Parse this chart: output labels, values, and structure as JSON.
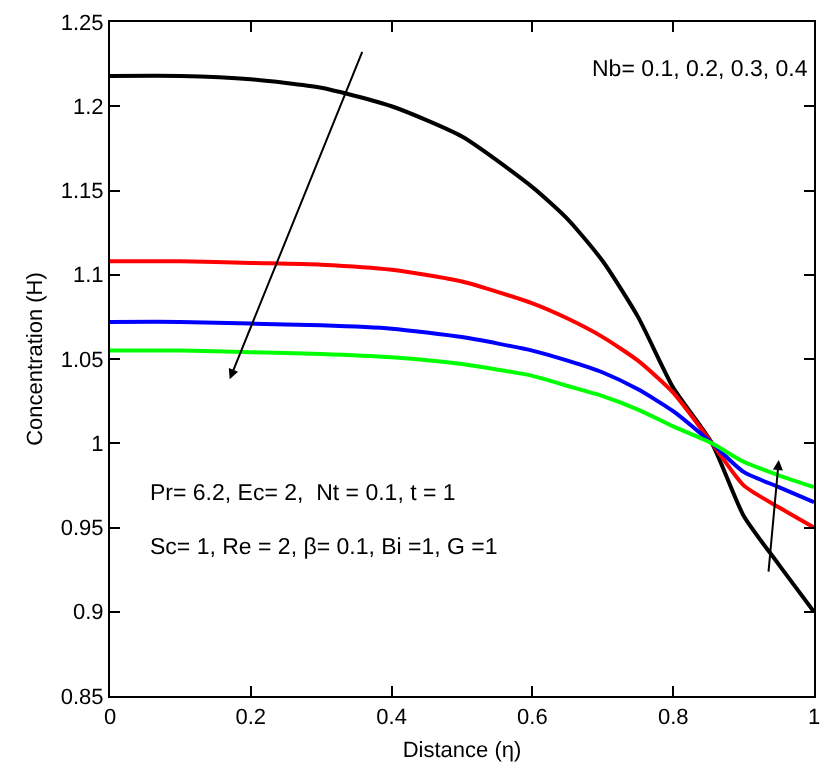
{
  "chart_data": {
    "type": "line",
    "xlabel": "Distance (η)",
    "ylabel": "Concentration (H)",
    "x": [
      0,
      0.1,
      0.2,
      0.3,
      0.4,
      0.5,
      0.6,
      0.65,
      0.7,
      0.75,
      0.8,
      0.855,
      0.9,
      0.95,
      1
    ],
    "series": [
      {
        "color": "#000000",
        "values": [
          1.218,
          1.218,
          1.216,
          1.211,
          1.2,
          1.182,
          1.152,
          1.133,
          1.108,
          1.075,
          1.033,
          1.0,
          0.957,
          0.928,
          0.9
        ]
      },
      {
        "color": "#ff0000",
        "values": [
          1.108,
          1.108,
          1.107,
          1.106,
          1.103,
          1.096,
          1.083,
          1.074,
          1.063,
          1.049,
          1.03,
          1.0,
          0.975,
          0.962,
          0.95
        ]
      },
      {
        "color": "#0000ff",
        "values": [
          1.072,
          1.072,
          1.071,
          1.07,
          1.068,
          1.063,
          1.055,
          1.049,
          1.042,
          1.032,
          1.019,
          1.0,
          0.983,
          0.974,
          0.965
        ]
      },
      {
        "color": "#00ff00",
        "values": [
          1.055,
          1.055,
          1.054,
          1.053,
          1.051,
          1.047,
          1.04,
          1.034,
          1.028,
          1.02,
          1.01,
          1.0,
          0.989,
          0.981,
          0.974
        ]
      }
    ],
    "xlim": [
      0,
      1
    ],
    "xticks": [
      0,
      0.2,
      0.4,
      0.6,
      0.8,
      1
    ],
    "ylim": [
      0.85,
      1.25
    ],
    "yticks": [
      0.85,
      0.9,
      0.95,
      1,
      1.05,
      1.1,
      1.15,
      1.2,
      1.25
    ],
    "grid": false,
    "marker": "none",
    "line_style": "solid",
    "annotations": [
      "Nb= 0.1, 0.2, 0.3, 0.4",
      "Pr= 6.2, Ec= 2,  Nt = 0.1, t = 1",
      "Sc= 1, Re = 2, β= 0.1, Bi =1, G =1"
    ]
  }
}
